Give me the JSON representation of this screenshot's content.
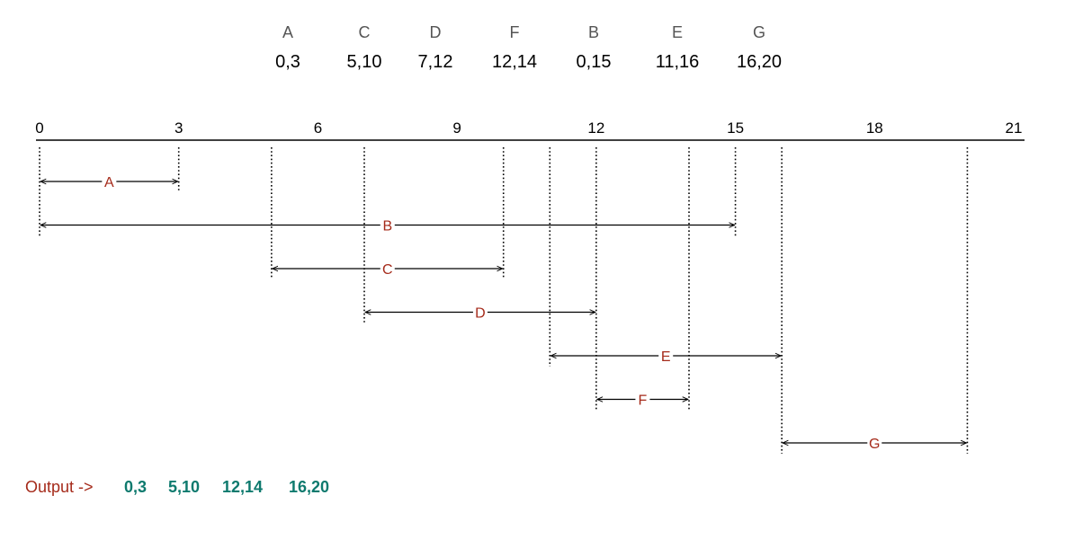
{
  "header": [
    {
      "name": "A",
      "range": "0,3"
    },
    {
      "name": "C",
      "range": "5,10"
    },
    {
      "name": "D",
      "range": "7,12"
    },
    {
      "name": "F",
      "range": "12,14"
    },
    {
      "name": "B",
      "range": "0,15"
    },
    {
      "name": "E",
      "range": "11,16"
    },
    {
      "name": "G",
      "range": "16,20"
    }
  ],
  "axis": {
    "min": 0,
    "max": 21,
    "ticks": [
      {
        "value": 0,
        "label": "0"
      },
      {
        "value": 3,
        "label": "3"
      },
      {
        "value": 6,
        "label": "6"
      },
      {
        "value": 9,
        "label": "9"
      },
      {
        "value": 12,
        "label": "12"
      },
      {
        "value": 15,
        "label": "15"
      },
      {
        "value": 18,
        "label": "18"
      },
      {
        "value": 21,
        "label": "21"
      }
    ]
  },
  "intervals": [
    {
      "label": "A",
      "start": 0,
      "end": 3
    },
    {
      "label": "B",
      "start": 0,
      "end": 15
    },
    {
      "label": "C",
      "start": 5,
      "end": 10
    },
    {
      "label": "D",
      "start": 7,
      "end": 12
    },
    {
      "label": "E",
      "start": 11,
      "end": 16
    },
    {
      "label": "F",
      "start": 12,
      "end": 14
    },
    {
      "label": "G",
      "start": 16,
      "end": 20
    }
  ],
  "output": {
    "label": "Output ->",
    "values": [
      "0,3",
      "5,10",
      "12,14",
      "16,20"
    ]
  },
  "colors": {
    "interval_label": "#a52a1a",
    "output_label": "#a52a1a",
    "output_value": "#0e7a6e",
    "axis": "#000000",
    "guide": "#000000"
  }
}
